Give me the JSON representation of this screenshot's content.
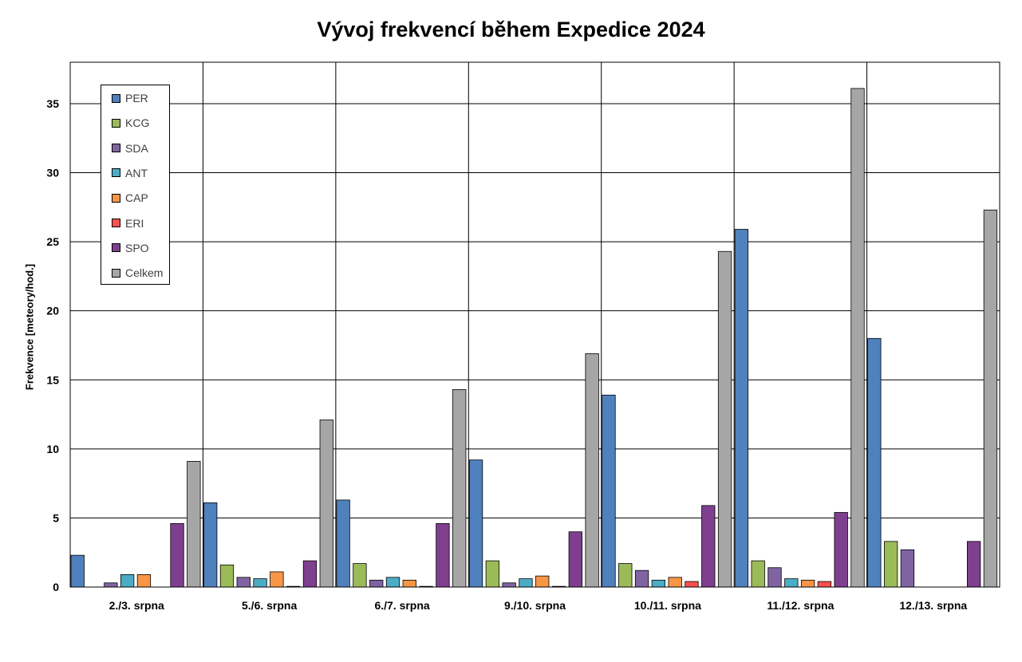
{
  "chart_data": {
    "type": "bar",
    "title": "Vývoj frekvencí během Expedice 2024",
    "ylabel": "Frekvence [meteory/hod.]",
    "xlabel": "",
    "ylim": [
      0,
      38
    ],
    "yticks": [
      0,
      5,
      10,
      15,
      20,
      25,
      30,
      35
    ],
    "grid": true,
    "legend_position": "top-left",
    "categories": [
      "2./3. srpna",
      "5./6. srpna",
      "6./7. srpna",
      "9./10. srpna",
      "10./11. srpna",
      "11./12. srpna",
      "12./13. srpna"
    ],
    "series": [
      {
        "name": "PER",
        "color": "#4f81bd",
        "values": [
          2.3,
          6.1,
          6.3,
          9.2,
          13.9,
          25.9,
          18.0
        ]
      },
      {
        "name": "KCG",
        "color": "#9bbb59",
        "values": [
          0,
          1.6,
          1.7,
          1.9,
          1.7,
          1.9,
          3.3
        ]
      },
      {
        "name": "SDA",
        "color": "#8064a2",
        "values": [
          0.3,
          0.7,
          0.5,
          0.3,
          1.2,
          1.4,
          2.7
        ]
      },
      {
        "name": "ANT",
        "color": "#4bacc6",
        "values": [
          0.9,
          0.6,
          0.7,
          0.6,
          0.5,
          0.6,
          0
        ]
      },
      {
        "name": "CAP",
        "color": "#f79646",
        "values": [
          0.9,
          1.1,
          0.5,
          0.8,
          0.7,
          0.5,
          0
        ]
      },
      {
        "name": "ERI",
        "color": "#ff4f4f",
        "values": [
          0,
          0.05,
          0.05,
          0.05,
          0.4,
          0.4,
          0
        ]
      },
      {
        "name": "SPO",
        "color": "#7f3f8f",
        "values": [
          4.6,
          1.9,
          4.6,
          4.0,
          5.9,
          5.4,
          3.3
        ]
      },
      {
        "name": "Celkem",
        "color": "#a6a6a6",
        "values": [
          9.1,
          12.1,
          14.3,
          16.9,
          24.3,
          36.1,
          27.3
        ]
      }
    ]
  }
}
